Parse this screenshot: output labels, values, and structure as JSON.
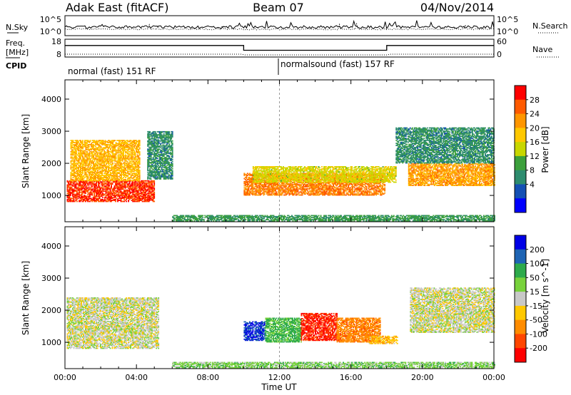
{
  "header": {
    "station": "Adak East (fitACF)",
    "beam": "Beam 07",
    "date": "04/Nov/2014"
  },
  "noise_panel": {
    "left_label": "N.Sky",
    "right_label": "N.Search",
    "left_ticks": [
      "10^5",
      "10^0"
    ],
    "right_ticks": [
      "10^5",
      "10^0"
    ]
  },
  "freq_panel": {
    "left_label_1": "Freq.",
    "left_label_2": "[MHz]",
    "right_label": "Nave",
    "left_ticks": [
      "18",
      "8"
    ],
    "right_ticks": [
      "60",
      "0"
    ],
    "freq_steps": [
      {
        "from_h": 0,
        "to_h": 10,
        "mhz": 14.5
      },
      {
        "from_h": 10,
        "to_h": 18,
        "mhz": 11.8
      },
      {
        "from_h": 18,
        "to_h": 24,
        "mhz": 14.5
      }
    ]
  },
  "cpid": {
    "label": "CPID",
    "segments": [
      {
        "start_h": 0,
        "text": "normal (fast) 151 RF"
      },
      {
        "start_h": 12,
        "text": "normalsound (fast) 157 RF"
      }
    ]
  },
  "time_axis": {
    "title": "Time UT",
    "ticks": [
      "00:00",
      "04:00",
      "08:00",
      "12:00",
      "16:00",
      "20:00",
      "00:00"
    ]
  },
  "power_panel": {
    "ylabel": "Slant Range [km]",
    "colorbar_title": "Power [dB]",
    "colorbar_ticks": [
      "28",
      "24",
      "20",
      "16",
      "12",
      "8",
      "4"
    ],
    "colorbar_colors": [
      "#ff0000",
      "#ff5a00",
      "#ff9600",
      "#ffc800",
      "#c8d700",
      "#3ca03c",
      "#2d8c6e",
      "#1450b4",
      "#0000ff"
    ]
  },
  "velocity_panel": {
    "ylabel": "Slant Range [km]",
    "colorbar_title": "Velocity [m s^-1]",
    "colorbar_ticks": [
      "200",
      "100",
      "50",
      "15",
      "-15",
      "-50",
      "-100",
      "-200"
    ],
    "colorbar_colors": [
      "#0000e6",
      "#1e64b4",
      "#2daa4b",
      "#78d23c",
      "#c8c8c8",
      "#ffc800",
      "#ff8c00",
      "#ff4600",
      "#ff0000"
    ]
  },
  "chart_data": {
    "type": "heatmap",
    "x_range_hours": [
      0,
      24
    ],
    "y_range_km": [
      180,
      4600
    ],
    "yticks_km": [
      1000,
      2000,
      3000,
      4000
    ],
    "grid": false,
    "power_regions_db": [
      {
        "t0": 0.1,
        "t1": 5.0,
        "r0": 800,
        "r1": 1450,
        "db": 28
      },
      {
        "t0": 0.3,
        "t1": 4.2,
        "r0": 1450,
        "r1": 2700,
        "db": 20
      },
      {
        "t0": 4.6,
        "t1": 6.0,
        "r0": 1500,
        "r1": 3000,
        "db": 8
      },
      {
        "t0": 10.0,
        "t1": 17.9,
        "r0": 1000,
        "r1": 1700,
        "db": 24
      },
      {
        "t0": 10.5,
        "t1": 18.5,
        "r0": 1400,
        "r1": 1900,
        "db": 16
      },
      {
        "t0": 19.2,
        "t1": 24.0,
        "r0": 1300,
        "r1": 2000,
        "db": 22
      },
      {
        "t0": 18.5,
        "t1": 24.0,
        "r0": 2000,
        "r1": 3100,
        "db": 8
      },
      {
        "t0": 6.0,
        "t1": 24.0,
        "r0": 200,
        "r1": 380,
        "db": 10
      }
    ],
    "velocity_regions_ms": [
      {
        "t0": 0.1,
        "t1": 5.2,
        "r0": 800,
        "r1": 2400,
        "v": 0
      },
      {
        "t0": 10.0,
        "t1": 11.2,
        "r0": 1050,
        "r1": 1650,
        "v": 200
      },
      {
        "t0": 11.2,
        "t1": 13.2,
        "r0": 1000,
        "r1": 1750,
        "v": 60
      },
      {
        "t0": 13.2,
        "t1": 15.2,
        "r0": 1050,
        "r1": 1900,
        "v": -200
      },
      {
        "t0": 15.2,
        "t1": 17.6,
        "r0": 1000,
        "r1": 1750,
        "v": -80
      },
      {
        "t0": 17.0,
        "t1": 18.6,
        "r0": 950,
        "r1": 1200,
        "v": -40
      },
      {
        "t0": 19.3,
        "t1": 24.0,
        "r0": 1300,
        "r1": 2700,
        "v": 0
      },
      {
        "t0": 6.0,
        "t1": 24.0,
        "r0": 200,
        "r1": 380,
        "v": 30
      }
    ]
  }
}
